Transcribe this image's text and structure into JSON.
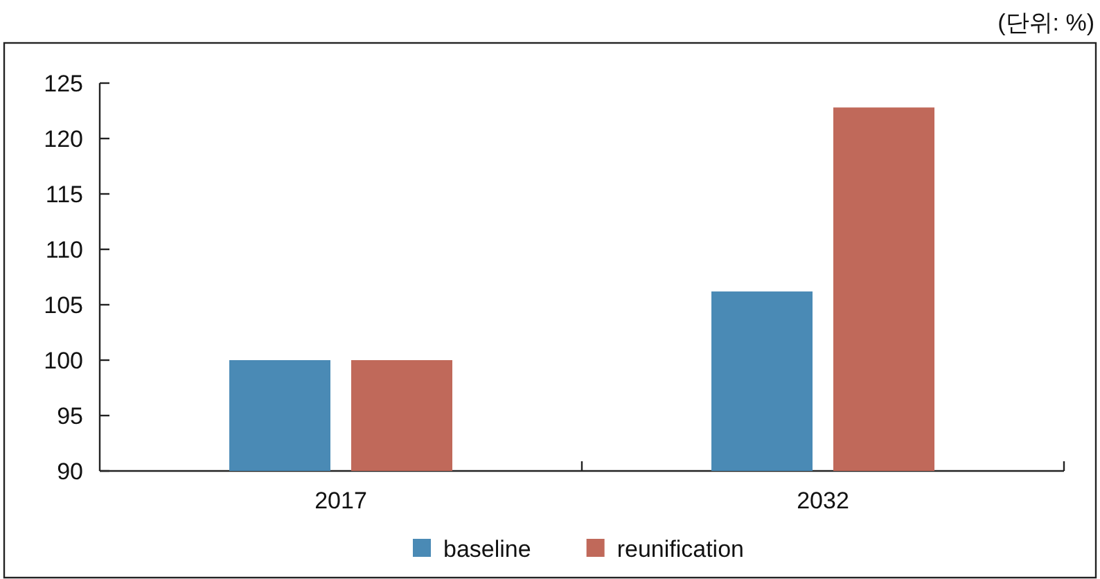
{
  "chart_data": {
    "type": "bar",
    "annotations": [
      "(단위: %)"
    ],
    "categories": [
      "2017",
      "2032"
    ],
    "series": [
      {
        "name": "baseline",
        "color": "#4a8ab5",
        "values": [
          100,
          106.2
        ]
      },
      {
        "name": "reunification",
        "color": "#c0695a",
        "values": [
          100,
          122.8
        ]
      }
    ],
    "ylim": [
      90,
      125
    ],
    "yticks": [
      90,
      95,
      100,
      105,
      110,
      115,
      120,
      125
    ],
    "grid": false,
    "legend": "bottom"
  }
}
